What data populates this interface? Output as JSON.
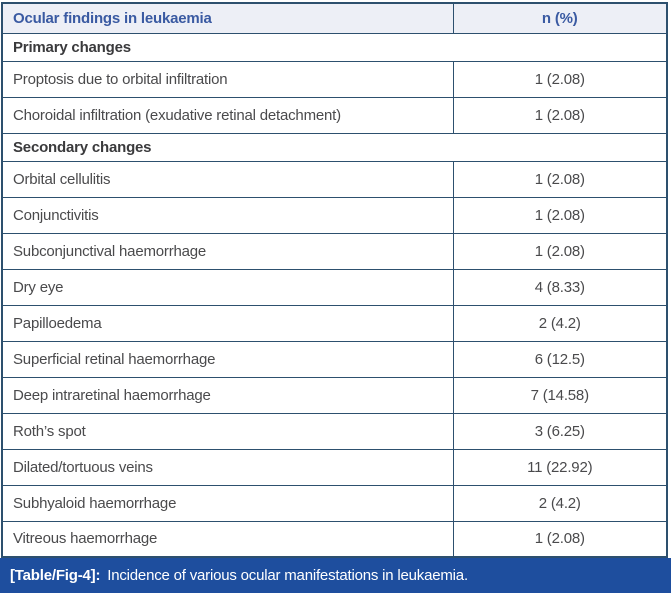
{
  "table": {
    "header": {
      "findings": "Ocular findings in leukaemia",
      "n_pct": "n (%)"
    },
    "sections": [
      {
        "title": "Primary changes",
        "rows": [
          {
            "finding": "Proptosis due to orbital infiltration",
            "value": "1 (2.08)"
          },
          {
            "finding": "Choroidal infiltration (exudative retinal detachment)",
            "value": "1 (2.08)"
          }
        ]
      },
      {
        "title": "Secondary changes",
        "rows": [
          {
            "finding": "Orbital cellulitis",
            "value": "1 (2.08)"
          },
          {
            "finding": "Conjunctivitis",
            "value": "1 (2.08)"
          },
          {
            "finding": "Subconjunctival haemorrhage",
            "value": "1 (2.08)"
          },
          {
            "finding": "Dry eye",
            "value": "4 (8.33)"
          },
          {
            "finding": "Papilloedema",
            "value": "2 (4.2)"
          },
          {
            "finding": "Superficial retinal haemorrhage",
            "value": "6 (12.5)"
          },
          {
            "finding": "Deep intraretinal haemorrhage",
            "value": "7 (14.58)"
          },
          {
            "finding": "Roth’s spot",
            "value": "3 (6.25)"
          },
          {
            "finding": "Dilated/tortuous veins",
            "value": "11 (22.92)"
          },
          {
            "finding": "Subhyaloid haemorrhage",
            "value": "2 (4.2)"
          },
          {
            "finding": "Vitreous haemorrhage",
            "value": "1 (2.08)"
          }
        ]
      }
    ]
  },
  "caption": {
    "label": "[Table/Fig-4]:",
    "text": "Incidence of various ocular manifestations in leukaemia."
  },
  "colors": {
    "border": "#2d506e",
    "header_bg": "#edeff6",
    "header_text": "#3a5aa2",
    "section_text": "#3a3a3c",
    "body_text": "#4a4a4c",
    "caption_bg": "#1e4e9e",
    "caption_text": "#ffffff",
    "row_bg": "#ffffff"
  },
  "chart_data": {
    "type": "table",
    "title": "Ocular findings in leukaemia",
    "columns": [
      "Ocular findings in leukaemia",
      "n (%)"
    ],
    "rows": [
      [
        "Primary changes",
        ""
      ],
      [
        "Proptosis due to orbital infiltration",
        "1 (2.08)"
      ],
      [
        "Choroidal infiltration (exudative retinal detachment)",
        "1 (2.08)"
      ],
      [
        "Secondary changes",
        ""
      ],
      [
        "Orbital cellulitis",
        "1 (2.08)"
      ],
      [
        "Conjunctivitis",
        "1 (2.08)"
      ],
      [
        "Subconjunctival haemorrhage",
        "1 (2.08)"
      ],
      [
        "Dry eye",
        "4 (8.33)"
      ],
      [
        "Papilloedema",
        "2 (4.2)"
      ],
      [
        "Superficial retinal haemorrhage",
        "6 (12.5)"
      ],
      [
        "Deep intraretinal haemorrhage",
        "7 (14.58)"
      ],
      [
        "Roth’s spot",
        "3 (6.25)"
      ],
      [
        "Dilated/tortuous veins",
        "11 (22.92)"
      ],
      [
        "Subhyaloid haemorrhage",
        "2 (4.2)"
      ],
      [
        "Vitreous haemorrhage",
        "1 (2.08)"
      ]
    ],
    "caption": "[Table/Fig-4]: Incidence of various ocular manifestations in leukaemia."
  }
}
